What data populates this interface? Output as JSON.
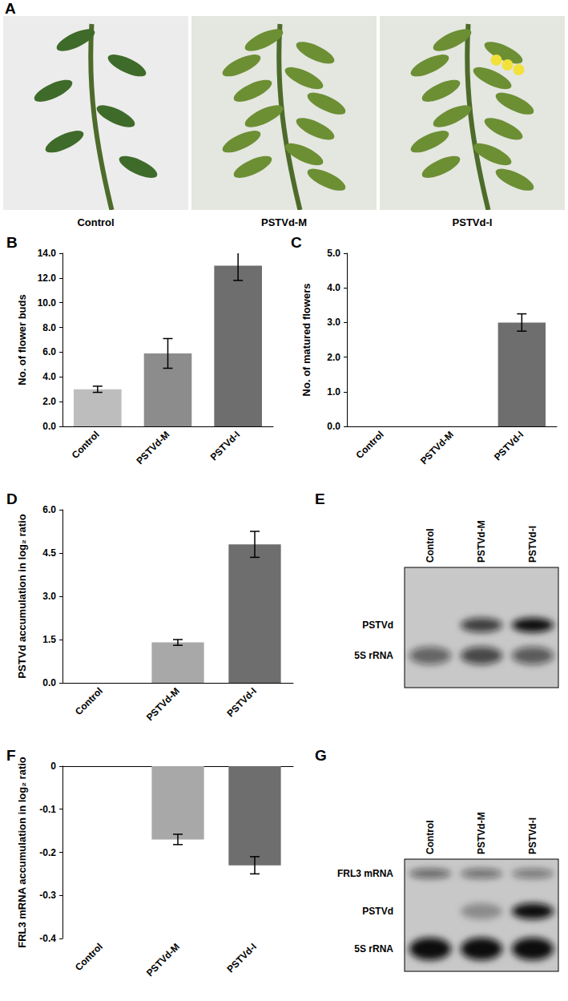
{
  "photos": {
    "panel": "A",
    "captions": [
      "Control",
      "PSTVd-M",
      "PSTVd-I"
    ]
  },
  "chart_data": [
    {
      "panel": "B",
      "type": "bar",
      "ylabel": "No. of flower buds",
      "categories": [
        "Control",
        "PSTVd-M",
        "PSTVd-I"
      ],
      "values": [
        3.0,
        5.9,
        13.0
      ],
      "errors": [
        0.25,
        1.2,
        1.2
      ],
      "colors": [
        "#bdbdbd",
        "#8c8c8c",
        "#6e6e6e"
      ],
      "ylim": [
        0,
        14
      ],
      "yticks": [
        {
          "value": 0,
          "label": "0.0"
        },
        {
          "value": 2,
          "label": "2.0"
        },
        {
          "value": 4,
          "label": "4.0"
        },
        {
          "value": 6,
          "label": "6.0"
        },
        {
          "value": 8,
          "label": "8.0"
        },
        {
          "value": 10,
          "label": "10.0"
        },
        {
          "value": 12,
          "label": "12.0"
        },
        {
          "value": 14,
          "label": "14.0"
        }
      ],
      "grid": false
    },
    {
      "panel": "C",
      "type": "bar",
      "ylabel": "No. of matured flowers",
      "categories": [
        "Control",
        "PSTVd-M",
        "PSTVd-I"
      ],
      "values": [
        0,
        0,
        3.0
      ],
      "errors": [
        null,
        null,
        0.25
      ],
      "colors": [
        "#6e6e6e",
        "#6e6e6e",
        "#6e6e6e"
      ],
      "ylim": [
        0,
        5
      ],
      "yticks": [
        {
          "value": 0,
          "label": "0.0"
        },
        {
          "value": 1,
          "label": "1.0"
        },
        {
          "value": 2,
          "label": "2.0"
        },
        {
          "value": 3,
          "label": "3.0"
        },
        {
          "value": 4,
          "label": "4.0"
        },
        {
          "value": 5,
          "label": "5.0"
        }
      ],
      "grid": false
    },
    {
      "panel": "D",
      "type": "bar",
      "ylabel": "PSTVd accumulation in log₂ ratio",
      "categories": [
        "Control",
        "PSTVd-M",
        "PSTVd-I"
      ],
      "values": [
        0,
        1.4,
        4.8
      ],
      "errors": [
        null,
        0.1,
        0.45
      ],
      "colors": [
        "#a8a8a8",
        "#a8a8a8",
        "#6e6e6e"
      ],
      "ylim": [
        0,
        6
      ],
      "yticks": [
        {
          "value": 0,
          "label": "0.0"
        },
        1.5,
        {
          "value": 3,
          "label": "3.0"
        },
        4.5,
        {
          "value": 6,
          "label": "6.0"
        }
      ],
      "grid": false
    },
    {
      "panel": "F",
      "type": "bar",
      "ylabel": "FRL3 mRNA accumulation in log₂ ratio",
      "categories": [
        "Control",
        "PSTVd-M",
        "PSTVd-I"
      ],
      "values": [
        0,
        -0.17,
        -0.23
      ],
      "errors": [
        null,
        0.012,
        0.02
      ],
      "colors": [
        "#a8a8a8",
        "#a8a8a8",
        "#6e6e6e"
      ],
      "ylim": [
        -0.4,
        0
      ],
      "yticks": [
        -0.4,
        -0.3,
        -0.2,
        -0.1,
        0
      ],
      "grid": false
    }
  ],
  "blots": [
    {
      "panel": "E",
      "lanes": [
        "Control",
        "PSTVd-M",
        "PSTVd-I"
      ],
      "bands": [
        "PSTVd",
        "5S rRNA"
      ]
    },
    {
      "panel": "G",
      "lanes": [
        "Control",
        "PSTVd-M",
        "PSTVd-I"
      ],
      "bands": [
        "FRL3 mRNA",
        "PSTVd",
        "5S rRNA"
      ]
    }
  ]
}
